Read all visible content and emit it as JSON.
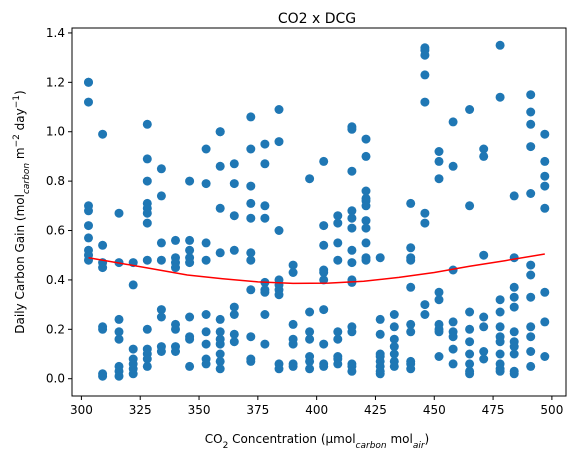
{
  "chart_data": {
    "type": "scatter",
    "title": "CO2 x DCG",
    "xlabel": {
      "prefix": "CO",
      "sub1": "2",
      "mid": " Concentration (µmol",
      "sub2": "carbon",
      "mid2": " mol",
      "sub3": "air",
      "suffix": ")"
    },
    "ylabel": {
      "prefix": "Daily Carbon Gain (mol",
      "sub1": "carbon",
      "mid": " m",
      "sup1": "−2",
      "mid2": " day",
      "sup2": "−1",
      "suffix": ")"
    },
    "xlim": [
      296,
      506
    ],
    "ylim": [
      -0.07,
      1.42
    ],
    "xticks": [
      300,
      325,
      350,
      375,
      400,
      425,
      450,
      475,
      500
    ],
    "yticks": [
      0.0,
      0.2,
      0.4,
      0.6,
      0.8,
      1.0,
      1.2,
      1.4
    ],
    "colors": {
      "points": "#1f77b4",
      "fit": "#ff0000"
    },
    "fit_curve": {
      "x": [
        303,
        315,
        330,
        345,
        360,
        375,
        390,
        405,
        420,
        435,
        450,
        465,
        480,
        497
      ],
      "y": [
        0.49,
        0.47,
        0.445,
        0.42,
        0.405,
        0.392,
        0.386,
        0.387,
        0.395,
        0.41,
        0.43,
        0.455,
        0.478,
        0.505
      ]
    },
    "points": [
      [
        303,
        1.2
      ],
      [
        303,
        1.2
      ],
      [
        303,
        1.12
      ],
      [
        303,
        0.7
      ],
      [
        303,
        0.68
      ],
      [
        303,
        0.62
      ],
      [
        303,
        0.57
      ],
      [
        303,
        0.52
      ],
      [
        303,
        0.5
      ],
      [
        303,
        0.48
      ],
      [
        309,
        0.99
      ],
      [
        309,
        0.54
      ],
      [
        309,
        0.47
      ],
      [
        309,
        0.45
      ],
      [
        309,
        0.21
      ],
      [
        309,
        0.2
      ],
      [
        309,
        0.02
      ],
      [
        309,
        0.01
      ],
      [
        316,
        0.67
      ],
      [
        316,
        0.47
      ],
      [
        316,
        0.24
      ],
      [
        316,
        0.19
      ],
      [
        316,
        0.16
      ],
      [
        316,
        0.05
      ],
      [
        316,
        0.03
      ],
      [
        316,
        0.01
      ],
      [
        322,
        0.47
      ],
      [
        322,
        0.38
      ],
      [
        322,
        0.12
      ],
      [
        322,
        0.08
      ],
      [
        322,
        0.06
      ],
      [
        322,
        0.04
      ],
      [
        322,
        0.02
      ],
      [
        328,
        1.03
      ],
      [
        328,
        0.89
      ],
      [
        328,
        0.8
      ],
      [
        328,
        0.71
      ],
      [
        328,
        0.69
      ],
      [
        328,
        0.67
      ],
      [
        328,
        0.63
      ],
      [
        328,
        0.48
      ],
      [
        328,
        0.2
      ],
      [
        328,
        0.12
      ],
      [
        328,
        0.1
      ],
      [
        328,
        0.08
      ],
      [
        328,
        0.05
      ],
      [
        334,
        0.85
      ],
      [
        334,
        0.74
      ],
      [
        334,
        0.55
      ],
      [
        334,
        0.48
      ],
      [
        334,
        0.28
      ],
      [
        334,
        0.25
      ],
      [
        334,
        0.13
      ],
      [
        334,
        0.11
      ],
      [
        340,
        0.56
      ],
      [
        340,
        0.49
      ],
      [
        340,
        0.47
      ],
      [
        340,
        0.45
      ],
      [
        340,
        0.22
      ],
      [
        340,
        0.2
      ],
      [
        340,
        0.13
      ],
      [
        340,
        0.11
      ],
      [
        346,
        0.8
      ],
      [
        346,
        0.56
      ],
      [
        346,
        0.52
      ],
      [
        346,
        0.49
      ],
      [
        346,
        0.47
      ],
      [
        346,
        0.25
      ],
      [
        346,
        0.17
      ],
      [
        346,
        0.16
      ],
      [
        346,
        0.05
      ],
      [
        353,
        0.93
      ],
      [
        353,
        0.79
      ],
      [
        353,
        0.55
      ],
      [
        353,
        0.48
      ],
      [
        353,
        0.26
      ],
      [
        353,
        0.19
      ],
      [
        353,
        0.14
      ],
      [
        353,
        0.08
      ],
      [
        353,
        0.06
      ],
      [
        359,
        1.0
      ],
      [
        359,
        1.0
      ],
      [
        359,
        0.86
      ],
      [
        359,
        0.69
      ],
      [
        359,
        0.51
      ],
      [
        359,
        0.24
      ],
      [
        359,
        0.19
      ],
      [
        359,
        0.16
      ],
      [
        359,
        0.14
      ],
      [
        359,
        0.1
      ],
      [
        359,
        0.07
      ],
      [
        359,
        0.04
      ],
      [
        365,
        0.87
      ],
      [
        365,
        0.79
      ],
      [
        365,
        0.66
      ],
      [
        365,
        0.52
      ],
      [
        365,
        0.29
      ],
      [
        365,
        0.26
      ],
      [
        365,
        0.18
      ],
      [
        365,
        0.15
      ],
      [
        372,
        1.06
      ],
      [
        372,
        0.93
      ],
      [
        372,
        0.78
      ],
      [
        372,
        0.71
      ],
      [
        372,
        0.65
      ],
      [
        372,
        0.51
      ],
      [
        372,
        0.48
      ],
      [
        372,
        0.36
      ],
      [
        372,
        0.17
      ],
      [
        372,
        0.08
      ],
      [
        372,
        0.07
      ],
      [
        378,
        0.95
      ],
      [
        378,
        0.87
      ],
      [
        378,
        0.7
      ],
      [
        378,
        0.65
      ],
      [
        378,
        0.39
      ],
      [
        378,
        0.36
      ],
      [
        378,
        0.35
      ],
      [
        378,
        0.26
      ],
      [
        378,
        0.14
      ],
      [
        384,
        1.09
      ],
      [
        384,
        0.96
      ],
      [
        384,
        0.6
      ],
      [
        384,
        0.4
      ],
      [
        384,
        0.38
      ],
      [
        384,
        0.36
      ],
      [
        384,
        0.34
      ],
      [
        384,
        0.06
      ],
      [
        384,
        0.04
      ],
      [
        390,
        0.46
      ],
      [
        390,
        0.43
      ],
      [
        390,
        0.22
      ],
      [
        390,
        0.16
      ],
      [
        390,
        0.14
      ],
      [
        390,
        0.06
      ],
      [
        390,
        0.05
      ],
      [
        397,
        0.81
      ],
      [
        397,
        0.27
      ],
      [
        397,
        0.19
      ],
      [
        397,
        0.16
      ],
      [
        397,
        0.09
      ],
      [
        397,
        0.07
      ],
      [
        397,
        0.04
      ],
      [
        403,
        0.88
      ],
      [
        403,
        0.62
      ],
      [
        403,
        0.54
      ],
      [
        403,
        0.44
      ],
      [
        403,
        0.43
      ],
      [
        403,
        0.4
      ],
      [
        403,
        0.28
      ],
      [
        403,
        0.14
      ],
      [
        403,
        0.06
      ],
      [
        403,
        0.05
      ],
      [
        409,
        0.66
      ],
      [
        409,
        0.63
      ],
      [
        409,
        0.55
      ],
      [
        409,
        0.48
      ],
      [
        409,
        0.19
      ],
      [
        409,
        0.16
      ],
      [
        409,
        0.09
      ],
      [
        409,
        0.08
      ],
      [
        409,
        0.06
      ],
      [
        415,
        1.02
      ],
      [
        415,
        1.01
      ],
      [
        415,
        0.84
      ],
      [
        415,
        0.68
      ],
      [
        415,
        0.65
      ],
      [
        415,
        0.61
      ],
      [
        415,
        0.52
      ],
      [
        415,
        0.47
      ],
      [
        415,
        0.4
      ],
      [
        415,
        0.39
      ],
      [
        415,
        0.21
      ],
      [
        415,
        0.19
      ],
      [
        415,
        0.06
      ],
      [
        415,
        0.05
      ],
      [
        415,
        0.03
      ],
      [
        421,
        0.97
      ],
      [
        421,
        0.9
      ],
      [
        421,
        0.76
      ],
      [
        421,
        0.73
      ],
      [
        421,
        0.72
      ],
      [
        421,
        0.7
      ],
      [
        421,
        0.64
      ],
      [
        421,
        0.61
      ],
      [
        421,
        0.55
      ],
      [
        421,
        0.49
      ],
      [
        421,
        0.48
      ],
      [
        427,
        0.49
      ],
      [
        427,
        0.24
      ],
      [
        427,
        0.18
      ],
      [
        427,
        0.1
      ],
      [
        427,
        0.09
      ],
      [
        427,
        0.07
      ],
      [
        427,
        0.05
      ],
      [
        427,
        0.03
      ],
      [
        427,
        0.02
      ],
      [
        433,
        0.26
      ],
      [
        433,
        0.21
      ],
      [
        433,
        0.16
      ],
      [
        433,
        0.13
      ],
      [
        433,
        0.1
      ],
      [
        433,
        0.07
      ],
      [
        433,
        0.05
      ],
      [
        440,
        0.71
      ],
      [
        440,
        0.53
      ],
      [
        440,
        0.49
      ],
      [
        440,
        0.48
      ],
      [
        440,
        0.37
      ],
      [
        440,
        0.22
      ],
      [
        440,
        0.19
      ],
      [
        440,
        0.07
      ],
      [
        440,
        0.06
      ],
      [
        440,
        0.04
      ],
      [
        446,
        1.34
      ],
      [
        446,
        1.33
      ],
      [
        446,
        1.31
      ],
      [
        446,
        1.23
      ],
      [
        446,
        1.12
      ],
      [
        446,
        0.67
      ],
      [
        446,
        0.63
      ],
      [
        446,
        0.3
      ],
      [
        446,
        0.26
      ],
      [
        452,
        0.92
      ],
      [
        452,
        0.88
      ],
      [
        452,
        0.81
      ],
      [
        452,
        0.35
      ],
      [
        452,
        0.32
      ],
      [
        452,
        0.22
      ],
      [
        452,
        0.2
      ],
      [
        452,
        0.19
      ],
      [
        452,
        0.09
      ],
      [
        458,
        1.04
      ],
      [
        458,
        0.86
      ],
      [
        458,
        0.44
      ],
      [
        458,
        0.23
      ],
      [
        458,
        0.19
      ],
      [
        458,
        0.17
      ],
      [
        458,
        0.12
      ],
      [
        458,
        0.06
      ],
      [
        465,
        1.09
      ],
      [
        465,
        0.7
      ],
      [
        465,
        0.27
      ],
      [
        465,
        0.2
      ],
      [
        465,
        0.15
      ],
      [
        465,
        0.1
      ],
      [
        465,
        0.06
      ],
      [
        465,
        0.03
      ],
      [
        465,
        0.02
      ],
      [
        471,
        0.93
      ],
      [
        471,
        0.9
      ],
      [
        471,
        0.5
      ],
      [
        471,
        0.25
      ],
      [
        471,
        0.21
      ],
      [
        471,
        0.11
      ],
      [
        471,
        0.08
      ],
      [
        478,
        1.35
      ],
      [
        478,
        1.14
      ],
      [
        478,
        0.32
      ],
      [
        478,
        0.27
      ],
      [
        478,
        0.21
      ],
      [
        478,
        0.17
      ],
      [
        478,
        0.15
      ],
      [
        478,
        0.1
      ],
      [
        478,
        0.06
      ],
      [
        478,
        0.04
      ],
      [
        478,
        0.03
      ],
      [
        484,
        0.74
      ],
      [
        484,
        0.49
      ],
      [
        484,
        0.37
      ],
      [
        484,
        0.33
      ],
      [
        484,
        0.29
      ],
      [
        484,
        0.19
      ],
      [
        484,
        0.15
      ],
      [
        484,
        0.13
      ],
      [
        484,
        0.1
      ],
      [
        484,
        0.03
      ],
      [
        484,
        0.02
      ],
      [
        491,
        1.15
      ],
      [
        491,
        1.08
      ],
      [
        491,
        1.03
      ],
      [
        491,
        0.94
      ],
      [
        491,
        0.75
      ],
      [
        491,
        0.46
      ],
      [
        491,
        0.42
      ],
      [
        491,
        0.33
      ],
      [
        491,
        0.21
      ],
      [
        491,
        0.17
      ],
      [
        491,
        0.11
      ],
      [
        491,
        0.05
      ],
      [
        497,
        0.99
      ],
      [
        497,
        0.88
      ],
      [
        497,
        0.82
      ],
      [
        497,
        0.78
      ],
      [
        497,
        0.69
      ],
      [
        497,
        0.35
      ],
      [
        497,
        0.23
      ],
      [
        497,
        0.09
      ]
    ]
  }
}
